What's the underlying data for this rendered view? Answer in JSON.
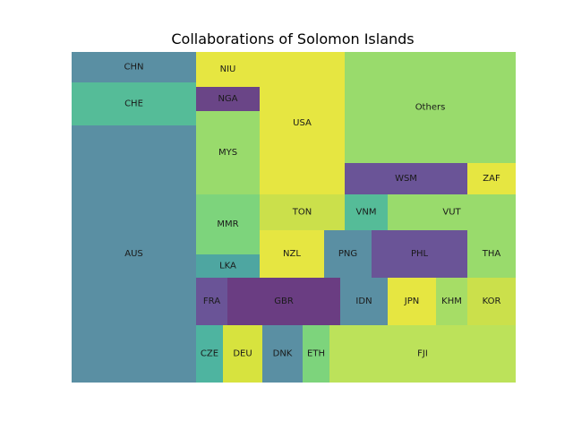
{
  "chart_data": {
    "type": "treemap",
    "title": "Collaborations of Solomon Islands",
    "tiles": [
      {
        "label": "CHN",
        "color": "#5a8fa3"
      },
      {
        "label": "CHE",
        "color": "#55bc98"
      },
      {
        "label": "AUS",
        "color": "#5a8fa3"
      },
      {
        "label": "NIU",
        "color": "#e6e641"
      },
      {
        "label": "NGA",
        "color": "#6a4587"
      },
      {
        "label": "MYS",
        "color": "#99db6c"
      },
      {
        "label": "MMR",
        "color": "#7dd47c"
      },
      {
        "label": "LKA",
        "color": "#4ea6a1"
      },
      {
        "label": "USA",
        "color": "#e6e641"
      },
      {
        "label": "Others",
        "color": "#99db6c"
      },
      {
        "label": "WSM",
        "color": "#6a5497"
      },
      {
        "label": "ZAF",
        "color": "#e6e641"
      },
      {
        "label": "TON",
        "color": "#cbe04b"
      },
      {
        "label": "VNM",
        "color": "#55bc98"
      },
      {
        "label": "VUT",
        "color": "#99db6c"
      },
      {
        "label": "NZL",
        "color": "#e6e641"
      },
      {
        "label": "PNG",
        "color": "#5a8fa3"
      },
      {
        "label": "PHL",
        "color": "#6a5497"
      },
      {
        "label": "THA",
        "color": "#99db6c"
      },
      {
        "label": "FRA",
        "color": "#6a5497"
      },
      {
        "label": "GBR",
        "color": "#6a3d82"
      },
      {
        "label": "IDN",
        "color": "#5a8fa3"
      },
      {
        "label": "JPN",
        "color": "#e6e641"
      },
      {
        "label": "KHM",
        "color": "#a6dd66"
      },
      {
        "label": "KOR",
        "color": "#cbe04b"
      },
      {
        "label": "CZE",
        "color": "#4eb4a0"
      },
      {
        "label": "DEU",
        "color": "#d7e33e"
      },
      {
        "label": "DNK",
        "color": "#5a8fa3"
      },
      {
        "label": "ETH",
        "color": "#7dd47c"
      },
      {
        "label": "FJI",
        "color": "#bce25a"
      }
    ]
  }
}
